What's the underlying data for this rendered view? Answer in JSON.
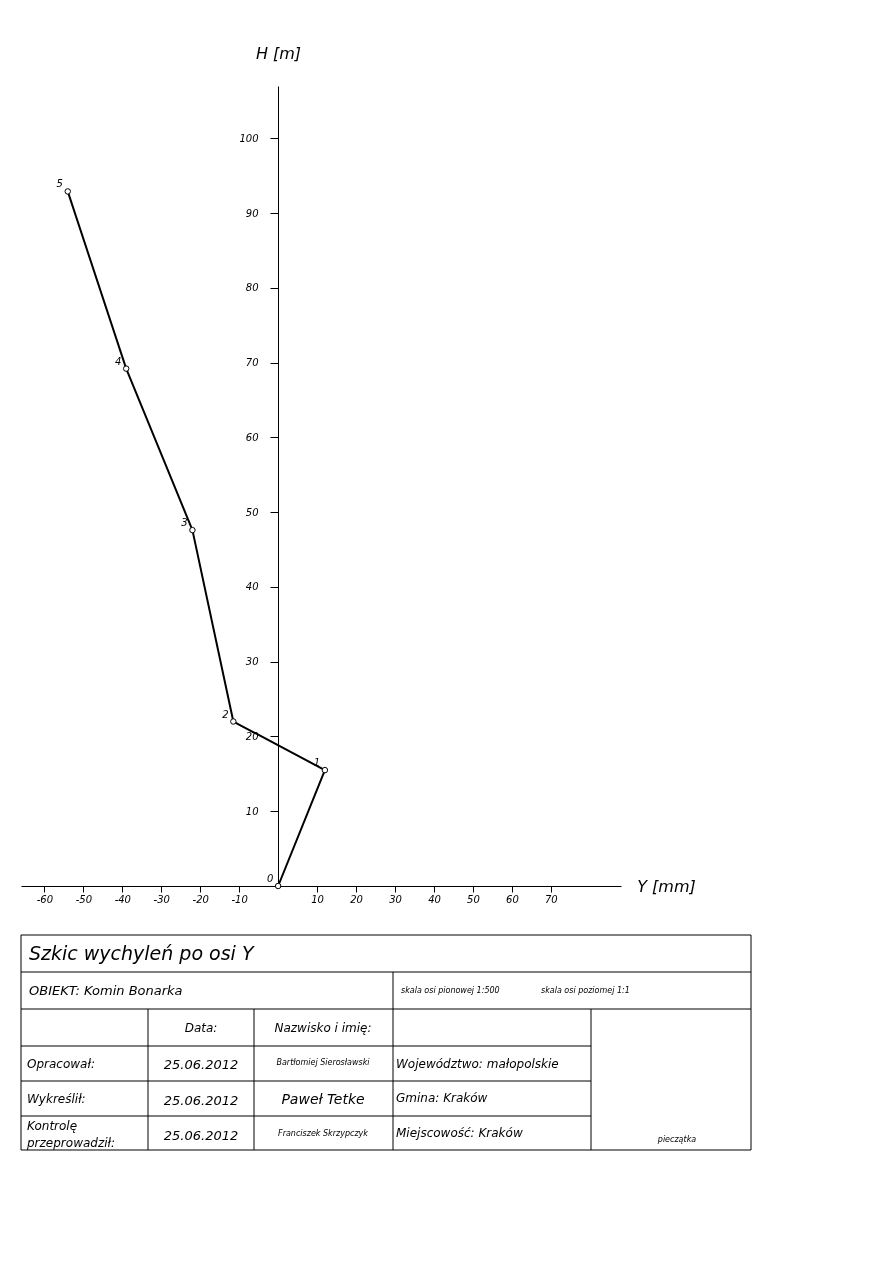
{
  "chart_data": {
    "type": "line",
    "title": "Szkic wychyleń po osi Y",
    "xlabel": "Y [mm]",
    "ylabel": "H [m]",
    "x": [
      0,
      12,
      -11.5,
      -22,
      -39,
      -54
    ],
    "series": [
      {
        "color": "#000000",
        "values": [
          0,
          15.5,
          22,
          47.6,
          69.2,
          92.9
        ]
      }
    ],
    "marker": "circle",
    "line_style": "solid",
    "grid": false,
    "xlim": [
      -66,
      88
    ],
    "ylim": [
      0,
      107
    ],
    "xticks": [
      -60,
      -50,
      -40,
      -30,
      -20,
      -10,
      10,
      20,
      30,
      40,
      50,
      60,
      70
    ],
    "yticks": [
      10,
      20,
      30,
      40,
      50,
      60,
      70,
      80,
      90,
      100
    ],
    "annotations": [
      {
        "text": "0",
        "x": 0,
        "y": 0
      },
      {
        "text": "1",
        "x": 12,
        "y": 15.5
      },
      {
        "text": "2",
        "x": -11.5,
        "y": 22
      },
      {
        "text": "3",
        "x": -22,
        "y": 47.6
      },
      {
        "text": "4",
        "x": -39,
        "y": 69.2
      },
      {
        "text": "5",
        "x": -54,
        "y": 92.9
      },
      "OBIEKT: Komin Bonarka",
      "skala osi pionowej 1:500",
      "skala osi poziomej 1:1",
      "Data:",
      "Nazwisko i imię:",
      "Opracował:",
      "25.06.2012",
      "Bartłomiej Sierosławski",
      "Województwo: małopolskie",
      "Wykreślił:",
      "25.06.2012",
      "Paweł Tetke",
      "Gmina: Kraków",
      "Kontrolę przeprowadził:",
      "25.06.2012",
      "Franciszek Skrzypczyk",
      "Miejscowość: Kraków",
      "pieczątka"
    ]
  }
}
